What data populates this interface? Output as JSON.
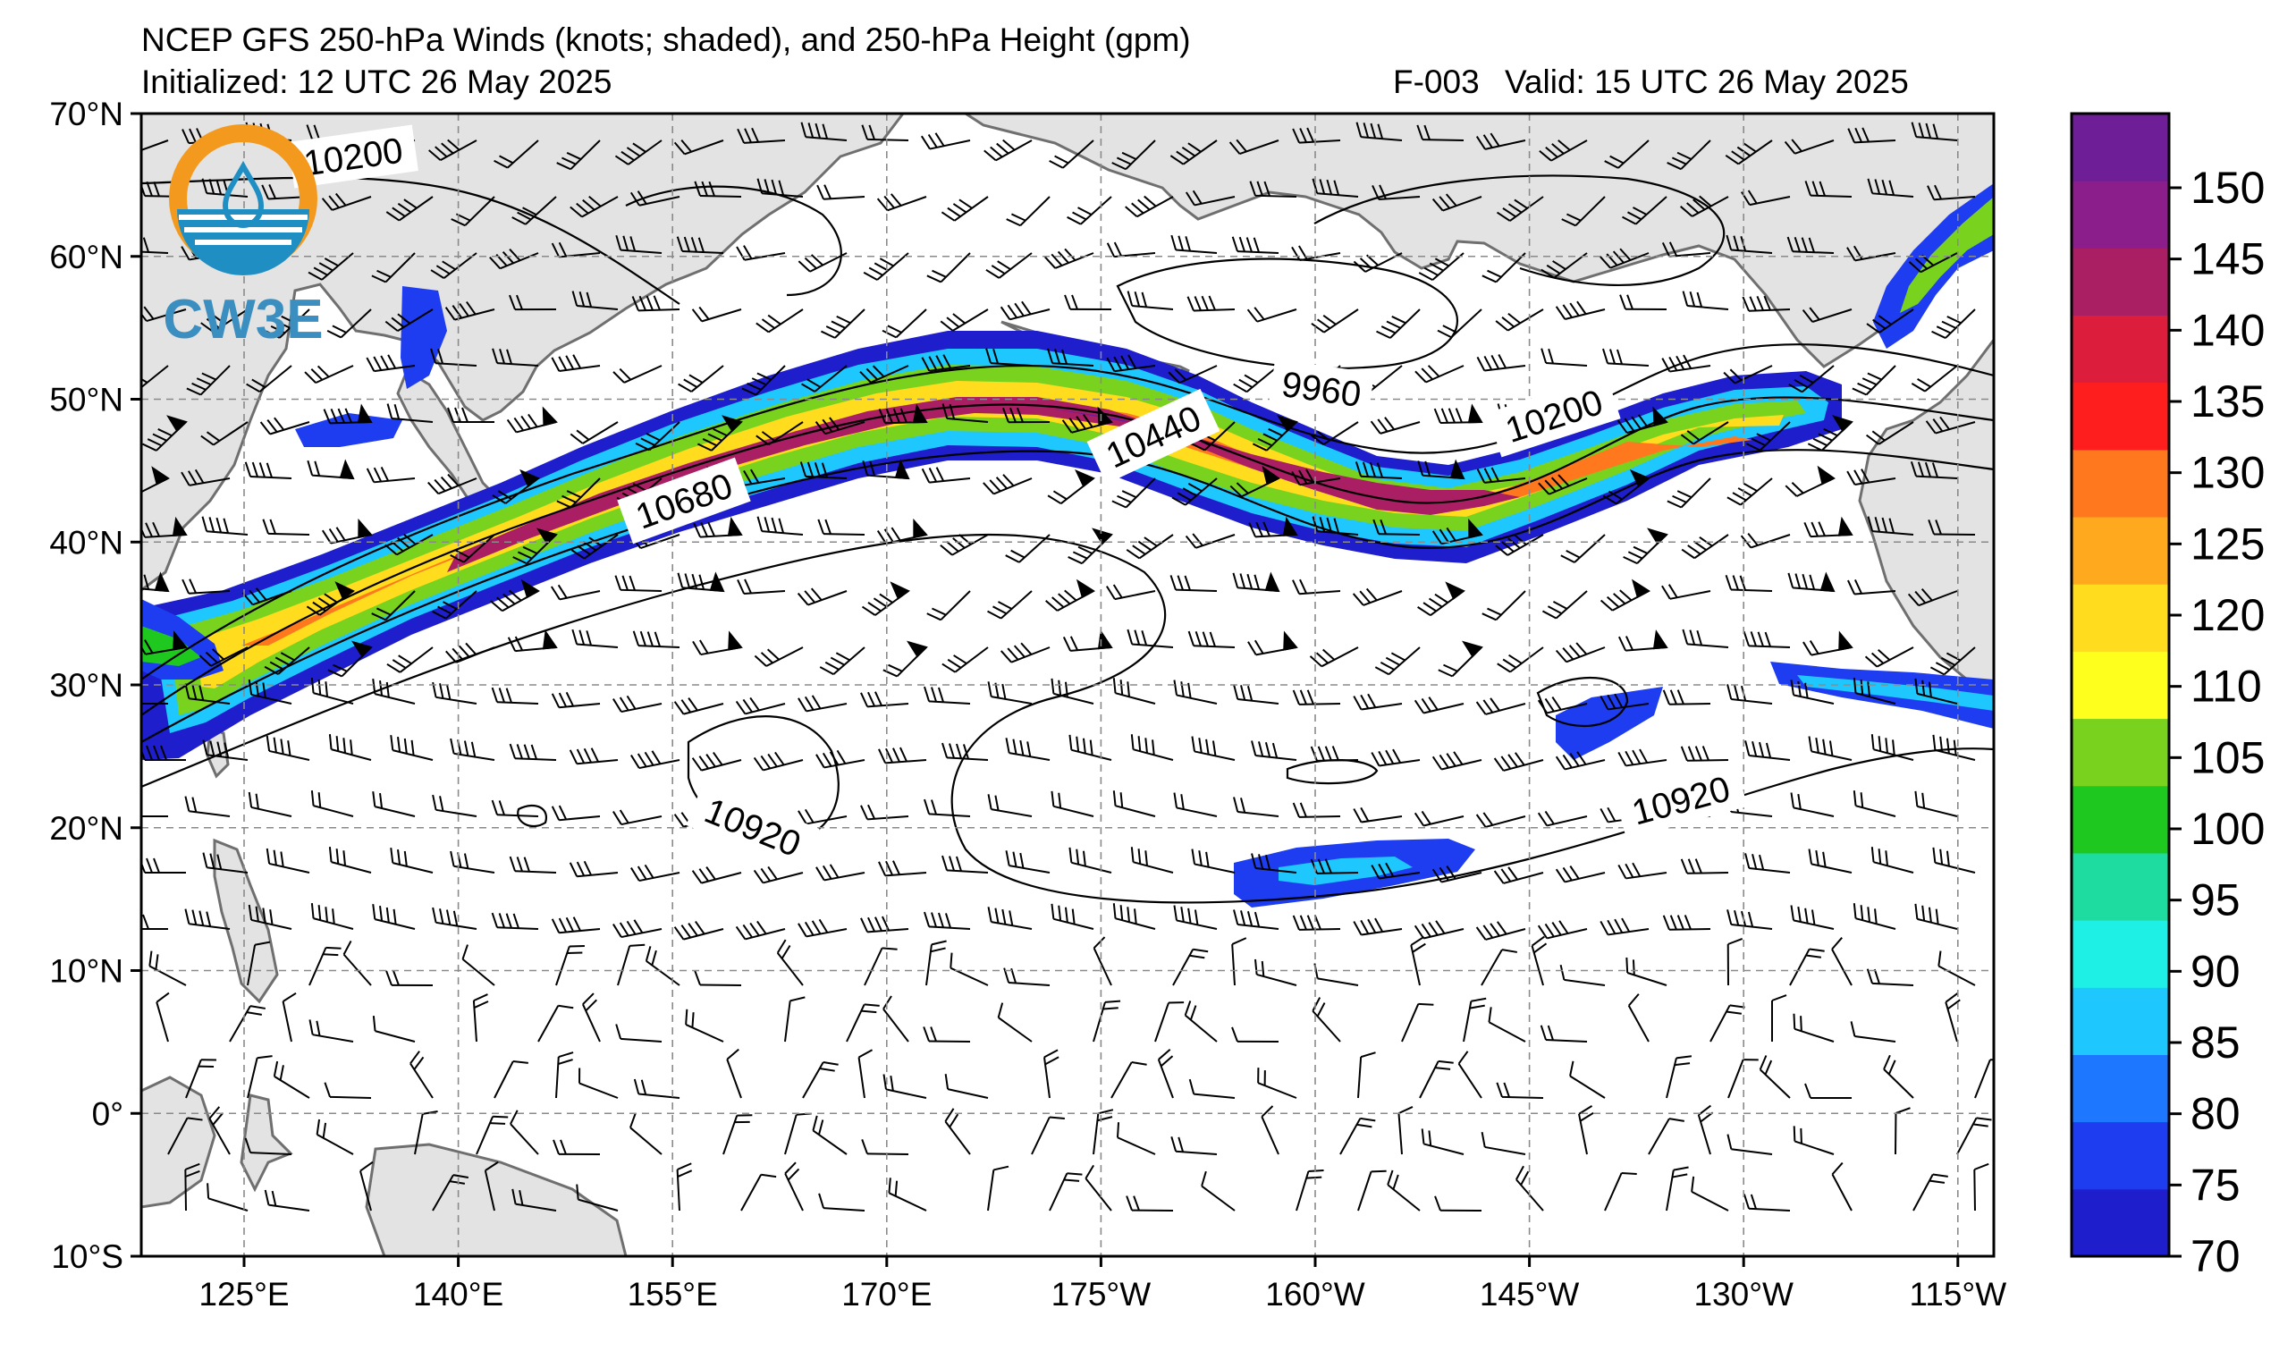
{
  "header": {
    "title": "NCEP GFS 250-hPa Winds (knots; shaded), and 250-hPa Height (gpm)",
    "initialized": "Initialized: 12 UTC 26 May 2025",
    "forecast_hour": "F-003",
    "valid": "Valid: 15 UTC 26 May 2025"
  },
  "logo": {
    "text": "CW3E",
    "ring_color": "#f39a1e",
    "water_color": "#1f8ec3"
  },
  "map": {
    "lat_ticks": [
      "70°N",
      "60°N",
      "50°N",
      "40°N",
      "30°N",
      "20°N",
      "10°N",
      "0°",
      "10°S"
    ],
    "lon_ticks": [
      "125°E",
      "140°E",
      "155°E",
      "170°E",
      "175°W",
      "160°W",
      "145°W",
      "130°W",
      "115°W"
    ],
    "height_labels": [
      "10200",
      "10680",
      "10440",
      "9960",
      "10200",
      "10920",
      "10920"
    ],
    "land_color": "#e3e3e3",
    "coast_color": "#6f6f6f"
  },
  "colorbar": {
    "ticks": [
      "150",
      "145",
      "140",
      "135",
      "130",
      "125",
      "120",
      "110",
      "105",
      "100",
      "95",
      "90",
      "85",
      "80",
      "75",
      "70"
    ],
    "colors": [
      "#1e1ecc",
      "#1e3cf0",
      "#1e78ff",
      "#1ec8ff",
      "#1ef0e6",
      "#1edca0",
      "#1ec81e",
      "#78d21e",
      "#ffff1e",
      "#ffdc1e",
      "#ffaa1e",
      "#ff781e",
      "#ff1e1e",
      "#dc1e3c",
      "#aa1e64",
      "#8c1e8c",
      "#6e1e96"
    ]
  }
}
